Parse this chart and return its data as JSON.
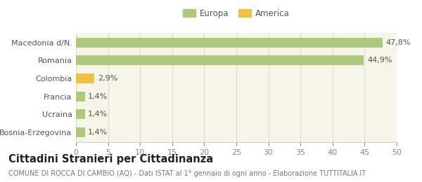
{
  "categories": [
    "Bosnia-Erzegovina",
    "Ucraina",
    "Francia",
    "Colombia",
    "Romania",
    "Macedonia d/N."
  ],
  "values": [
    1.4,
    1.4,
    1.4,
    2.9,
    44.9,
    47.8
  ],
  "labels": [
    "1,4%",
    "1,4%",
    "1,4%",
    "2,9%",
    "44,9%",
    "47,8%"
  ],
  "colors": [
    "#adc97e",
    "#adc97e",
    "#adc97e",
    "#f0c040",
    "#adc97e",
    "#adc97e"
  ],
  "legend_items": [
    {
      "label": "Europa",
      "color": "#adc97e"
    },
    {
      "label": "America",
      "color": "#f0c040"
    }
  ],
  "xlim": [
    0,
    50
  ],
  "xticks": [
    0,
    5,
    10,
    15,
    20,
    25,
    30,
    35,
    40,
    45,
    50
  ],
  "title_bold": "Cittadini Stranieri per Cittadinanza",
  "subtitle": "COMUNE DI ROCCA DI CAMBIO (AQ) - Dati ISTAT al 1° gennaio di ogni anno - Elaborazione TUTTITALIA.IT",
  "bg_color": "#ffffff",
  "plot_bg_color": "#f5f5e8",
  "bar_height": 0.55,
  "label_fontsize": 8.0,
  "tick_fontsize": 8.0,
  "title_fontsize": 10.5,
  "subtitle_fontsize": 7.0
}
